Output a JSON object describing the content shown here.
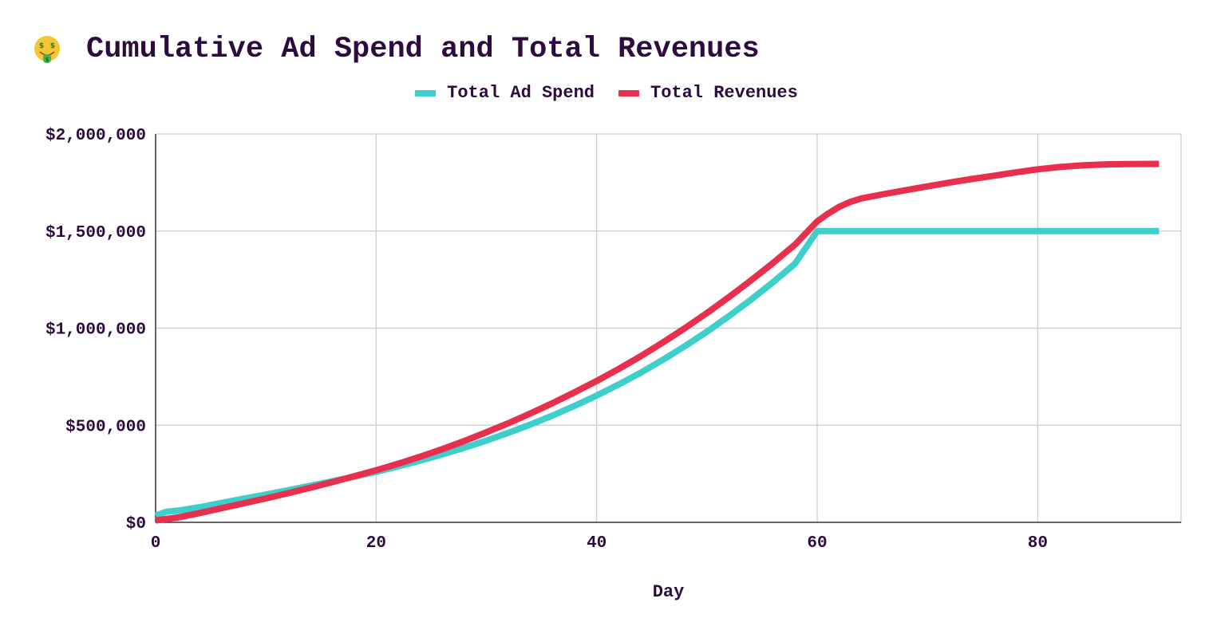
{
  "title": "Cumulative Ad Spend and Total Revenues",
  "title_icon": "money-mouth-face-icon",
  "colors": {
    "text": "#2e0b3e",
    "grid": "#cccccc",
    "axis": "#333333",
    "ad_spend": "#3ecfcc",
    "revenues": "#e8304e"
  },
  "chart_data": {
    "type": "line",
    "title": "Cumulative Ad Spend and Total Revenues",
    "xlabel": "Day",
    "ylabel": "",
    "xlim": [
      0,
      93
    ],
    "ylim": [
      0,
      2000000
    ],
    "x_ticks": [
      0,
      20,
      40,
      60,
      80
    ],
    "x_tick_labels": [
      "0",
      "20",
      "40",
      "60",
      "80"
    ],
    "y_ticks": [
      0,
      500000,
      1000000,
      1500000,
      2000000
    ],
    "y_tick_labels": [
      "$0",
      "$500,000",
      "$1,000,000",
      "$1,500,000",
      "$2,000,000"
    ],
    "grid": true,
    "legend_position": "top",
    "series": [
      {
        "name": "Total Ad Spend",
        "color": "#3ecfcc",
        "x": [
          0,
          1,
          2,
          4,
          6,
          8,
          10,
          12,
          14,
          16,
          18,
          20,
          22,
          24,
          26,
          28,
          30,
          32,
          34,
          36,
          38,
          40,
          42,
          44,
          46,
          48,
          50,
          52,
          54,
          56,
          58,
          60,
          62,
          65,
          70,
          75,
          80,
          85,
          91
        ],
        "y": [
          35000,
          55000,
          60000,
          78000,
          100000,
          122000,
          143000,
          165000,
          188000,
          211000,
          235000,
          260000,
          288000,
          318000,
          350000,
          384000,
          421000,
          461000,
          504000,
          550000,
          600000,
          653000,
          710000,
          771000,
          837000,
          907000,
          982000,
          1062000,
          1147000,
          1237000,
          1333000,
          1500000,
          1500000,
          1500000,
          1500000,
          1500000,
          1500000,
          1500000,
          1500000
        ]
      },
      {
        "name": "Total Revenues",
        "color": "#e8304e",
        "x": [
          0,
          2,
          4,
          6,
          8,
          10,
          12,
          14,
          16,
          18,
          20,
          22,
          24,
          26,
          28,
          30,
          32,
          34,
          36,
          38,
          40,
          42,
          44,
          46,
          48,
          50,
          52,
          54,
          56,
          58,
          60,
          61,
          62,
          63,
          64,
          66,
          68,
          70,
          72,
          74,
          76,
          78,
          80,
          82,
          84,
          86,
          88,
          91
        ],
        "y": [
          10000,
          25000,
          48000,
          73000,
          98000,
          123000,
          150000,
          178000,
          207000,
          237000,
          268000,
          302000,
          338000,
          377000,
          419000,
          464000,
          511000,
          561000,
          614000,
          670000,
          728000,
          790000,
          856000,
          926000,
          1000000,
          1078000,
          1160000,
          1246000,
          1336000,
          1431000,
          1550000,
          1590000,
          1625000,
          1650000,
          1668000,
          1690000,
          1710000,
          1730000,
          1750000,
          1768000,
          1785000,
          1802000,
          1818000,
          1830000,
          1838000,
          1843000,
          1845000,
          1846000
        ]
      }
    ]
  }
}
